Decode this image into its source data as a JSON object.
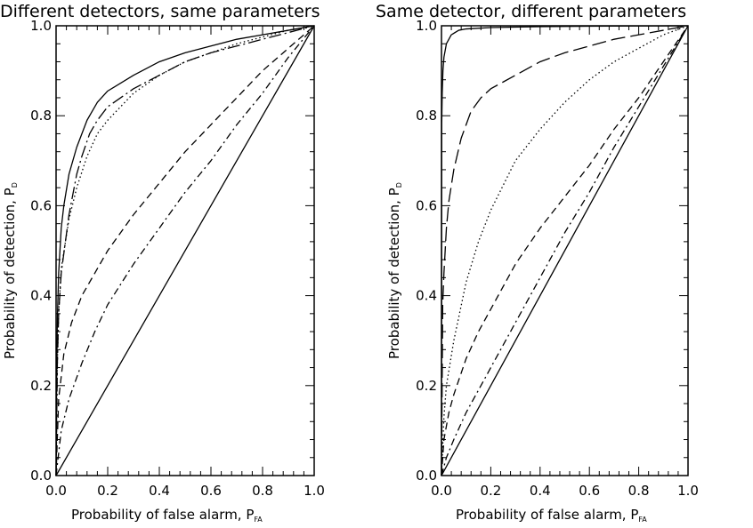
{
  "chart_data": [
    {
      "type": "line",
      "title": "Different detectors, same parameters",
      "xlabel": "Probability of false alarm, P",
      "xlabel_sub": "FA",
      "ylabel": "Probability of detection, P",
      "ylabel_sub": "D",
      "xlim": [
        0,
        1
      ],
      "ylim": [
        0,
        1
      ],
      "xticks": [
        "0.0",
        "0.2",
        "0.4",
        "0.6",
        "0.8",
        "1.0"
      ],
      "yticks": [
        "0.0",
        "0.2",
        "0.4",
        "0.6",
        "0.8",
        "1.0"
      ],
      "series": [
        {
          "style": "solid",
          "x": [
            0,
            0.002,
            0.005,
            0.01,
            0.02,
            0.03,
            0.05,
            0.08,
            0.12,
            0.16,
            0.2,
            0.3,
            0.4,
            0.5,
            0.6,
            0.7,
            0.8,
            0.9,
            1.0
          ],
          "y": [
            0,
            0.2,
            0.35,
            0.45,
            0.55,
            0.6,
            0.67,
            0.73,
            0.79,
            0.83,
            0.855,
            0.89,
            0.92,
            0.94,
            0.955,
            0.97,
            0.98,
            0.99,
            1.0
          ]
        },
        {
          "style": "long-dash-dot",
          "x": [
            0,
            0.005,
            0.01,
            0.02,
            0.05,
            0.08,
            0.1,
            0.13,
            0.16,
            0.2,
            0.3,
            0.4,
            0.5,
            0.6,
            0.7,
            0.8,
            0.9,
            1.0
          ],
          "y": [
            0,
            0.25,
            0.36,
            0.45,
            0.58,
            0.67,
            0.71,
            0.76,
            0.79,
            0.82,
            0.86,
            0.89,
            0.92,
            0.94,
            0.955,
            0.97,
            0.985,
            1.0
          ]
        },
        {
          "style": "dotted",
          "x": [
            0,
            0.005,
            0.01,
            0.02,
            0.05,
            0.08,
            0.12,
            0.16,
            0.2,
            0.3,
            0.4,
            0.5,
            0.6,
            0.7,
            0.8,
            0.9,
            1.0
          ],
          "y": [
            0,
            0.25,
            0.36,
            0.46,
            0.57,
            0.64,
            0.71,
            0.76,
            0.79,
            0.85,
            0.89,
            0.92,
            0.94,
            0.96,
            0.975,
            0.99,
            1.0
          ]
        },
        {
          "style": "dashed",
          "x": [
            0,
            0.01,
            0.03,
            0.06,
            0.1,
            0.15,
            0.2,
            0.3,
            0.4,
            0.5,
            0.6,
            0.7,
            0.8,
            0.9,
            1.0
          ],
          "y": [
            0,
            0.17,
            0.27,
            0.34,
            0.4,
            0.45,
            0.5,
            0.58,
            0.65,
            0.72,
            0.78,
            0.84,
            0.9,
            0.95,
            1.0
          ]
        },
        {
          "style": "dash-dot",
          "x": [
            0,
            0.02,
            0.05,
            0.1,
            0.15,
            0.2,
            0.3,
            0.4,
            0.5,
            0.6,
            0.7,
            0.8,
            0.9,
            1.0
          ],
          "y": [
            0,
            0.1,
            0.17,
            0.25,
            0.32,
            0.38,
            0.47,
            0.55,
            0.63,
            0.7,
            0.78,
            0.85,
            0.93,
            1.0
          ]
        },
        {
          "style": "solid",
          "x": [
            0,
            1
          ],
          "y": [
            0,
            1
          ]
        }
      ]
    },
    {
      "type": "line",
      "title": "Same detector, different parameters",
      "xlabel": "Probability of false alarm, P",
      "xlabel_sub": "FA",
      "ylabel": "Probability of detection, P",
      "ylabel_sub": "D",
      "xlim": [
        0,
        1
      ],
      "ylim": [
        0,
        1
      ],
      "xticks": [
        "0.0",
        "0.2",
        "0.4",
        "0.6",
        "0.8",
        "1.0"
      ],
      "yticks": [
        "0.0",
        "0.2",
        "0.4",
        "0.6",
        "0.8",
        "1.0"
      ],
      "series": [
        {
          "style": "solid",
          "x": [
            0,
            0.001,
            0.003,
            0.006,
            0.01,
            0.02,
            0.04,
            0.07,
            0.1,
            0.2,
            0.4,
            0.6,
            0.8,
            1.0
          ],
          "y": [
            0,
            0.78,
            0.85,
            0.9,
            0.93,
            0.96,
            0.98,
            0.99,
            0.993,
            0.996,
            0.998,
            0.999,
            0.9995,
            1.0
          ]
        },
        {
          "style": "long-dash",
          "x": [
            0,
            0.005,
            0.01,
            0.02,
            0.03,
            0.05,
            0.08,
            0.12,
            0.16,
            0.2,
            0.3,
            0.4,
            0.5,
            0.6,
            0.7,
            0.8,
            0.9,
            1.0
          ],
          "y": [
            0,
            0.38,
            0.45,
            0.55,
            0.61,
            0.68,
            0.75,
            0.81,
            0.84,
            0.86,
            0.89,
            0.92,
            0.94,
            0.955,
            0.97,
            0.98,
            0.99,
            1.0
          ]
        },
        {
          "style": "dotted",
          "x": [
            0,
            0.01,
            0.02,
            0.05,
            0.1,
            0.15,
            0.2,
            0.3,
            0.4,
            0.5,
            0.6,
            0.7,
            0.8,
            0.9,
            1.0
          ],
          "y": [
            0,
            0.13,
            0.2,
            0.3,
            0.43,
            0.52,
            0.59,
            0.7,
            0.77,
            0.83,
            0.88,
            0.92,
            0.95,
            0.98,
            1.0
          ]
        },
        {
          "style": "dashed",
          "x": [
            0,
            0.01,
            0.03,
            0.05,
            0.1,
            0.15,
            0.2,
            0.3,
            0.4,
            0.5,
            0.6,
            0.7,
            0.8,
            0.9,
            1.0
          ],
          "y": [
            0,
            0.08,
            0.14,
            0.18,
            0.26,
            0.32,
            0.37,
            0.47,
            0.55,
            0.62,
            0.69,
            0.77,
            0.84,
            0.92,
            1.0
          ]
        },
        {
          "style": "dash-dot",
          "x": [
            0,
            0.02,
            0.05,
            0.1,
            0.2,
            0.3,
            0.4,
            0.5,
            0.6,
            0.7,
            0.8,
            0.9,
            1.0
          ],
          "y": [
            0,
            0.04,
            0.08,
            0.14,
            0.24,
            0.34,
            0.44,
            0.54,
            0.63,
            0.73,
            0.82,
            0.91,
            1.0
          ]
        },
        {
          "style": "solid",
          "x": [
            0,
            1
          ],
          "y": [
            0,
            1
          ]
        }
      ]
    }
  ]
}
